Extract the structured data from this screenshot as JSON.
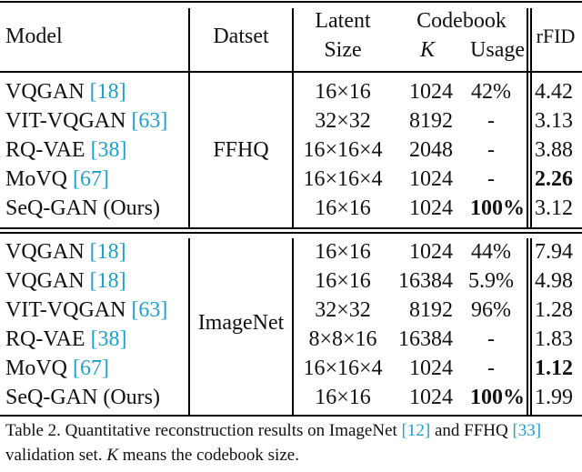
{
  "header": {
    "model": "Model",
    "dataset": "Datset",
    "latent_line1": "Latent",
    "latent_line2": "Size",
    "codebook": "Codebook",
    "k": "K",
    "usage": "Usage",
    "rfid": "rFID"
  },
  "groups": [
    {
      "dataset": "FFHQ",
      "rows": [
        {
          "model": "VQGAN",
          "cite": "[18]",
          "latent": "16×16",
          "k": "1024",
          "usage": "42%",
          "rfid": "4.42",
          "usage_bold": false,
          "rfid_bold": false
        },
        {
          "model": "VIT-VQGAN",
          "cite": "[63]",
          "latent": "32×32",
          "k": "8192",
          "usage": "-",
          "rfid": "3.13",
          "usage_bold": false,
          "rfid_bold": false
        },
        {
          "model": "RQ-VAE",
          "cite": "[38]",
          "latent": "16×16×4",
          "k": "2048",
          "usage": "-",
          "rfid": "3.88",
          "usage_bold": false,
          "rfid_bold": false
        },
        {
          "model": "MoVQ",
          "cite": "[67]",
          "latent": "16×16×4",
          "k": "1024",
          "usage": "-",
          "rfid": "2.26",
          "usage_bold": false,
          "rfid_bold": true
        },
        {
          "model": "SeQ-GAN (Ours)",
          "cite": "",
          "latent": "16×16",
          "k": "1024",
          "usage": "100%",
          "rfid": "3.12",
          "usage_bold": true,
          "rfid_bold": false
        }
      ]
    },
    {
      "dataset": "ImageNet",
      "rows": [
        {
          "model": "VQGAN",
          "cite": "[18]",
          "latent": "16×16",
          "k": "1024",
          "usage": "44%",
          "rfid": "7.94",
          "usage_bold": false,
          "rfid_bold": false
        },
        {
          "model": "VQGAN",
          "cite": "[18]",
          "latent": "16×16",
          "k": "16384",
          "usage": "5.9%",
          "rfid": "4.98",
          "usage_bold": false,
          "rfid_bold": false
        },
        {
          "model": "VIT-VQGAN",
          "cite": "[63]",
          "latent": "32×32",
          "k": "8192",
          "usage": "96%",
          "rfid": "1.28",
          "usage_bold": false,
          "rfid_bold": false
        },
        {
          "model": "RQ-VAE",
          "cite": "[38]",
          "latent": "8×8×16",
          "k": "16384",
          "usage": "-",
          "rfid": "1.83",
          "usage_bold": false,
          "rfid_bold": false
        },
        {
          "model": "MoVQ",
          "cite": "[67]",
          "latent": "16×16×4",
          "k": "1024",
          "usage": "-",
          "rfid": "1.12",
          "usage_bold": false,
          "rfid_bold": true
        },
        {
          "model": "SeQ-GAN (Ours)",
          "cite": "",
          "latent": "16×16",
          "k": "1024",
          "usage": "100%",
          "rfid": "1.99",
          "usage_bold": true,
          "rfid_bold": false
        }
      ]
    }
  ],
  "caption": {
    "prefix": "Table 2.  Quantitative reconstruction results on ImageNet ",
    "cite1": "[12]",
    "mid1": " and FFHQ ",
    "cite2": "[33]",
    "mid2": " validation set. ",
    "k": "K",
    "suffix": " means the codebook size."
  }
}
